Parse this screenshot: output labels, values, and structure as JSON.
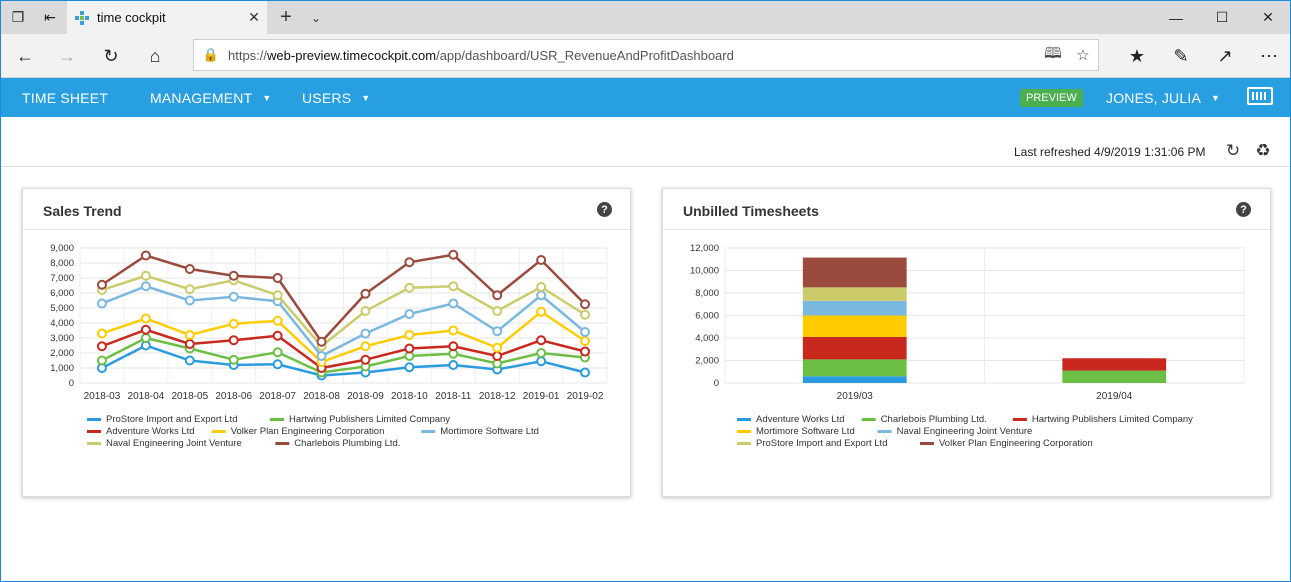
{
  "browser": {
    "tab_title": "time cockpit",
    "url_prefix": "https://",
    "url_host": "web-preview.timecockpit.com",
    "url_path": "/app/dashboard/USR_RevenueAndProfitDashboard"
  },
  "nav": {
    "items": [
      {
        "label": "TIME SHEET",
        "dropdown": false
      },
      {
        "label": "MANAGEMENT",
        "dropdown": true
      },
      {
        "label": "USERS",
        "dropdown": true
      }
    ],
    "badge": "PREVIEW",
    "user": "JONES, JULIA"
  },
  "refresh": {
    "text": "Last refreshed 4/9/2019 1:31:06 PM"
  },
  "cards": {
    "sales": {
      "title": "Sales Trend",
      "help": "?"
    },
    "unbilled": {
      "title": "Unbilled Timesheets",
      "help": "?"
    }
  },
  "chart_data": [
    {
      "type": "line",
      "title": "Sales Trend",
      "ylim": [
        0,
        9000
      ],
      "yticks": [
        0,
        1000,
        2000,
        3000,
        4000,
        5000,
        6000,
        7000,
        8000,
        9000
      ],
      "ytick_labels": [
        "0",
        "1,000",
        "2,000",
        "3,000",
        "4,000",
        "5,000",
        "6,000",
        "7,000",
        "8,000",
        "9,000"
      ],
      "categories": [
        "2018-03",
        "2018-04",
        "2018-05",
        "2018-06",
        "2018-07",
        "2018-08",
        "2018-09",
        "2018-10",
        "2018-11",
        "2018-12",
        "2019-01",
        "2019-02"
      ],
      "grid": true,
      "legend_position": "bottom",
      "series": [
        {
          "name": "ProStore Import and Export Ltd",
          "color": "#2b9be0",
          "values": [
            1000,
            2500,
            1500,
            1200,
            1250,
            500,
            700,
            1050,
            1200,
            900,
            1450,
            700
          ]
        },
        {
          "name": "Hartwing Publishers Limited Company",
          "color": "#6cbf45",
          "values": [
            1500,
            3000,
            2300,
            1550,
            2050,
            700,
            1100,
            1800,
            1950,
            1300,
            2000,
            1700
          ]
        },
        {
          "name": "Adventure Works Ltd",
          "color": "#c8281e",
          "values": [
            2450,
            3550,
            2600,
            2850,
            3150,
            1000,
            1550,
            2300,
            2450,
            1800,
            2850,
            2100
          ]
        },
        {
          "name": "Volker Plan Engineering Corporation",
          "color": "#ffcc00",
          "values": [
            3300,
            4300,
            3200,
            3950,
            4150,
            1400,
            2450,
            3200,
            3500,
            2350,
            4750,
            2800
          ]
        },
        {
          "name": "Mortimore Software Ltd",
          "color": "#7ab8e0",
          "values": [
            5300,
            6450,
            5500,
            5750,
            5450,
            1800,
            3300,
            4600,
            5300,
            3450,
            5850,
            3400
          ]
        },
        {
          "name": "Naval Engineering Joint Venture",
          "color": "#cbcb6c",
          "values": [
            6200,
            7150,
            6250,
            6850,
            5850,
            2450,
            4800,
            6350,
            6450,
            4800,
            6400,
            4550
          ]
        },
        {
          "name": "Charlebois Plumbing Ltd.",
          "color": "#9a4b3d",
          "values": [
            6550,
            8500,
            7600,
            7150,
            7000,
            2750,
            5950,
            8050,
            8550,
            5850,
            8200,
            5250
          ]
        }
      ]
    },
    {
      "type": "bar",
      "stacked": true,
      "title": "Unbilled Timesheets",
      "ylim": [
        0,
        12000
      ],
      "yticks": [
        0,
        2000,
        4000,
        6000,
        8000,
        10000,
        12000
      ],
      "ytick_labels": [
        "0",
        "2,000",
        "4,000",
        "6,000",
        "8,000",
        "10,000",
        "12,000"
      ],
      "categories": [
        "2019/03",
        "2019/04"
      ],
      "grid": true,
      "legend_position": "bottom",
      "series": [
        {
          "name": "Adventure Works Ltd",
          "color": "#2b9be0",
          "values": [
            600,
            0
          ]
        },
        {
          "name": "Charlebois Plumbing Ltd.",
          "color": "#6cbf45",
          "values": [
            1500,
            1100
          ]
        },
        {
          "name": "Hartwing Publishers Limited Company",
          "color": "#c8281e",
          "values": [
            2000,
            1100
          ]
        },
        {
          "name": "Mortimore Software Ltd",
          "color": "#ffcc00",
          "values": [
            1900,
            0
          ]
        },
        {
          "name": "Naval Engineering Joint Venture",
          "color": "#7ab8e0",
          "values": [
            1300,
            0
          ]
        },
        {
          "name": "ProStore Import and Export Ltd",
          "color": "#cbcb6c",
          "values": [
            1200,
            0
          ]
        },
        {
          "name": "Volker Plan Engineering Corporation",
          "color": "#9a4b3d",
          "values": [
            2650,
            0
          ]
        }
      ]
    }
  ]
}
